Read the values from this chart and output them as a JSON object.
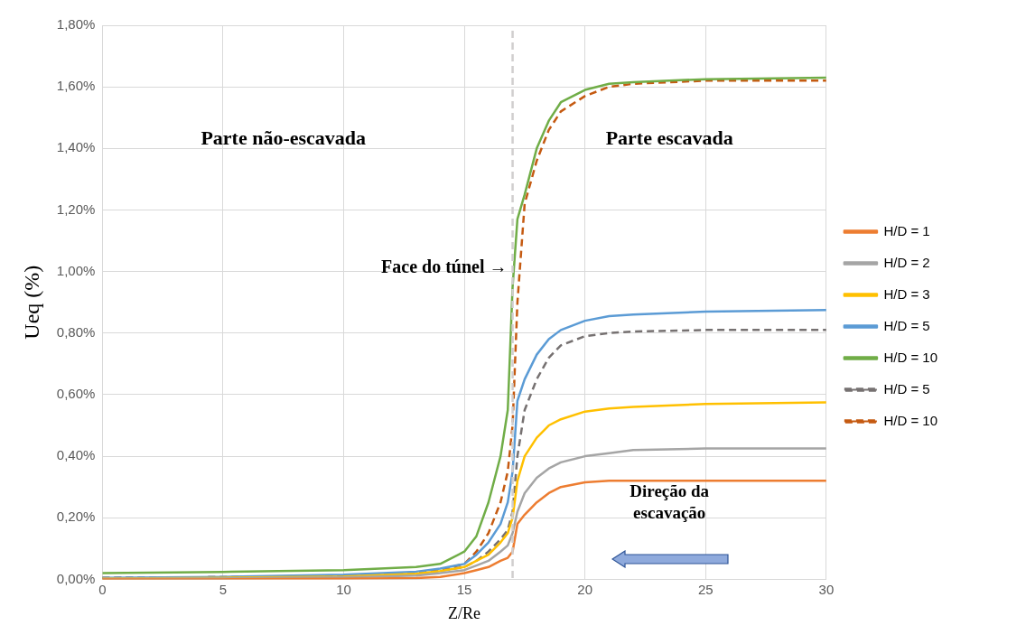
{
  "chart_data": {
    "type": "line",
    "xlabel": "Z/Re",
    "ylabel": "Ueq (%)",
    "x": [
      0,
      5,
      10,
      13,
      14,
      15,
      15.5,
      16,
      16.5,
      16.8,
      17,
      17.2,
      17.5,
      18,
      18.5,
      19,
      20,
      21,
      22,
      25,
      30
    ],
    "series": [
      {
        "name": "H/D = 1",
        "color": "#ed7d31",
        "values": [
          0,
          0,
          0.002,
          0.004,
          0.008,
          0.02,
          0.03,
          0.04,
          0.06,
          0.07,
          0.09,
          0.18,
          0.21,
          0.25,
          0.28,
          0.3,
          0.315,
          0.32,
          0.32,
          0.32,
          0.32
        ]
      },
      {
        "name": "H/D = 2",
        "color": "#a5a5a5",
        "values": [
          0.002,
          0.003,
          0.006,
          0.012,
          0.02,
          0.03,
          0.045,
          0.06,
          0.09,
          0.11,
          0.15,
          0.22,
          0.28,
          0.33,
          0.36,
          0.38,
          0.4,
          0.41,
          0.42,
          0.425,
          0.425
        ]
      },
      {
        "name": "H/D = 3",
        "color": "#ffc000",
        "values": [
          0.003,
          0.005,
          0.009,
          0.018,
          0.027,
          0.04,
          0.06,
          0.08,
          0.12,
          0.15,
          0.2,
          0.32,
          0.4,
          0.46,
          0.5,
          0.52,
          0.545,
          0.555,
          0.56,
          0.57,
          0.575
        ]
      },
      {
        "name": "H/D = 5",
        "color": "#5b9bd5",
        "values": [
          0.005,
          0.008,
          0.015,
          0.025,
          0.035,
          0.05,
          0.08,
          0.12,
          0.18,
          0.25,
          0.35,
          0.58,
          0.65,
          0.73,
          0.78,
          0.81,
          0.84,
          0.855,
          0.86,
          0.87,
          0.875
        ]
      },
      {
        "name": "H/D = 10",
        "color": "#70ad47",
        "values": [
          0.02,
          0.024,
          0.03,
          0.04,
          0.05,
          0.09,
          0.14,
          0.25,
          0.4,
          0.55,
          0.95,
          1.17,
          1.25,
          1.4,
          1.49,
          1.55,
          1.59,
          1.61,
          1.615,
          1.625,
          1.63
        ]
      },
      {
        "name": "H/D = 5",
        "color": "#767171",
        "line_style": "dashed",
        "values": [
          0.005,
          0.007,
          0.012,
          0.02,
          0.028,
          0.04,
          0.06,
          0.09,
          0.13,
          0.16,
          0.22,
          0.4,
          0.55,
          0.65,
          0.72,
          0.76,
          0.79,
          0.8,
          0.805,
          0.81,
          0.81
        ]
      },
      {
        "name": "H/D = 10",
        "color": "#c55a11",
        "line_style": "dashed",
        "values": [
          0.005,
          0.007,
          0.012,
          0.02,
          0.03,
          0.05,
          0.09,
          0.15,
          0.25,
          0.35,
          0.5,
          0.9,
          1.22,
          1.36,
          1.46,
          1.52,
          1.57,
          1.6,
          1.61,
          1.62,
          1.62
        ]
      }
    ],
    "xlim": [
      0,
      30
    ],
    "xticks": [
      0,
      5,
      10,
      15,
      20,
      25,
      30
    ],
    "ylim": [
      0,
      1.8
    ],
    "yticks": [
      {
        "value": 0,
        "label": "0,00%"
      },
      {
        "value": 0.2,
        "label": "0,20%"
      },
      {
        "value": 0.4,
        "label": "0,40%"
      },
      {
        "value": 0.6,
        "label": "0,60%"
      },
      {
        "value": 0.8,
        "label": "0,80%"
      },
      {
        "value": 1,
        "label": "1,00%"
      },
      {
        "value": 1.2,
        "label": "1,20%"
      },
      {
        "value": 1.4,
        "label": "1,40%"
      },
      {
        "value": 1.6,
        "label": "1,60%"
      },
      {
        "value": 1.8,
        "label": "1,80%"
      }
    ],
    "ref_lines": [
      {
        "axis": "x",
        "value": 17,
        "label": "Face do túnel →",
        "color": "#d0cece",
        "line_style": "dashed"
      }
    ],
    "annotations": [
      "Parte não-escavada",
      "Parte escavada",
      "Direção da escavação"
    ],
    "grid": true,
    "legend": "right",
    "marker": "none",
    "line_style": "solid"
  }
}
